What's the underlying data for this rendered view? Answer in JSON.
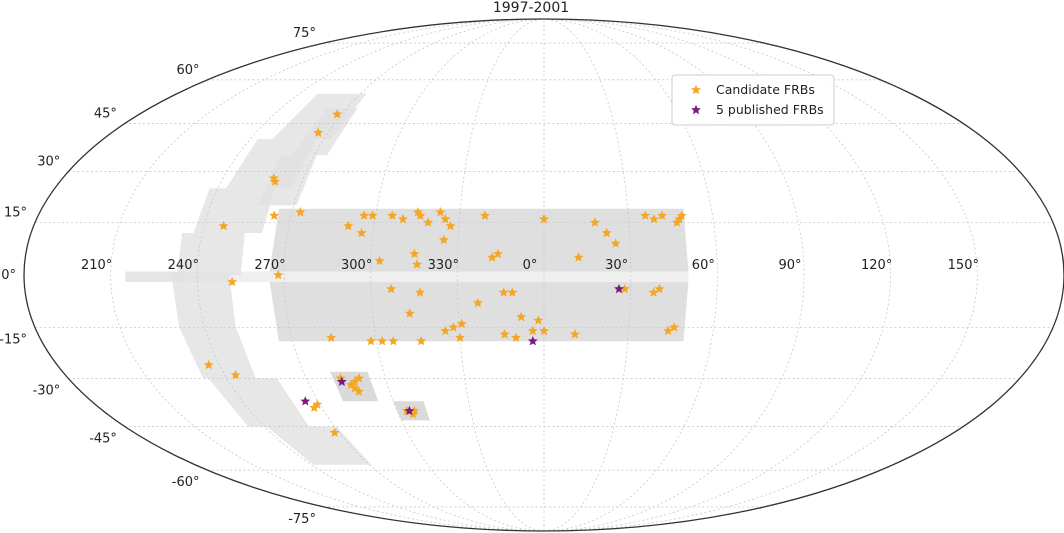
{
  "chart_data": {
    "type": "scatter",
    "projection": "mollweide",
    "title": "1997-2001",
    "grid": true,
    "legend_position": "top-right",
    "longitude_ticks": [
      "210°",
      "240°",
      "270°",
      "300°",
      "330°",
      "0°",
      "30°",
      "60°",
      "90°",
      "120°",
      "150°"
    ],
    "latitude_ticks": [
      "-75°",
      "-60°",
      "-45°",
      "-30°",
      "-15°",
      "0°",
      "15°",
      "30°",
      "45°",
      "60°",
      "75°"
    ],
    "colors": {
      "candidate": "#f5a623",
      "published": "#7b1a80",
      "coverage": "#d9d9d9",
      "border": "#333333"
    },
    "series": [
      {
        "name": "Candidate FRBs",
        "color": "#f5a623",
        "points": [
          {
            "lon": 268,
            "lat": 48
          },
          {
            "lon": 266,
            "lat": 42
          },
          {
            "lon": 259,
            "lat": 28
          },
          {
            "lon": 260,
            "lat": 27
          },
          {
            "lon": 247,
            "lat": 14
          },
          {
            "lon": 264,
            "lat": 17
          },
          {
            "lon": 273,
            "lat": 18
          },
          {
            "lon": 291,
            "lat": 14
          },
          {
            "lon": 296,
            "lat": 17
          },
          {
            "lon": 299,
            "lat": 17
          },
          {
            "lon": 306,
            "lat": 17
          },
          {
            "lon": 310,
            "lat": 16
          },
          {
            "lon": 315,
            "lat": 18
          },
          {
            "lon": 316,
            "lat": 17
          },
          {
            "lon": 319,
            "lat": 15
          },
          {
            "lon": 323,
            "lat": 18
          },
          {
            "lon": 325,
            "lat": 16
          },
          {
            "lon": 327,
            "lat": 14
          },
          {
            "lon": 339,
            "lat": 17
          },
          {
            "lon": 0,
            "lat": 16
          },
          {
            "lon": 18,
            "lat": 15
          },
          {
            "lon": 22,
            "lat": 12
          },
          {
            "lon": 25,
            "lat": 9
          },
          {
            "lon": 36,
            "lat": 17
          },
          {
            "lon": 39,
            "lat": 16
          },
          {
            "lon": 42,
            "lat": 17
          },
          {
            "lon": 47,
            "lat": 15
          },
          {
            "lon": 48,
            "lat": 16
          },
          {
            "lon": 49,
            "lat": 17
          },
          {
            "lon": 296,
            "lat": 12
          },
          {
            "lon": 303,
            "lat": 4
          },
          {
            "lon": 315,
            "lat": 6
          },
          {
            "lon": 316,
            "lat": 3
          },
          {
            "lon": 325,
            "lat": 10
          },
          {
            "lon": 342,
            "lat": 5
          },
          {
            "lon": 344,
            "lat": 6
          },
          {
            "lon": 12,
            "lat": 5
          },
          {
            "lon": 268,
            "lat": 0
          },
          {
            "lon": 252,
            "lat": -2
          },
          {
            "lon": 307,
            "lat": -4
          },
          {
            "lon": 317,
            "lat": -5
          },
          {
            "lon": 337,
            "lat": -8
          },
          {
            "lon": 346,
            "lat": -5
          },
          {
            "lon": 349,
            "lat": -5
          },
          {
            "lon": 28,
            "lat": -4
          },
          {
            "lon": 38,
            "lat": -5
          },
          {
            "lon": 40,
            "lat": -4
          },
          {
            "lon": 313,
            "lat": -11
          },
          {
            "lon": 325,
            "lat": -16
          },
          {
            "lon": 328,
            "lat": -15
          },
          {
            "lon": 331,
            "lat": -14
          },
          {
            "lon": 352,
            "lat": -12
          },
          {
            "lon": 358,
            "lat": -13
          },
          {
            "lon": 356,
            "lat": -16
          },
          {
            "lon": 0,
            "lat": -16
          },
          {
            "lon": 346,
            "lat": -17
          },
          {
            "lon": 350,
            "lat": -18
          },
          {
            "lon": 11,
            "lat": -17
          },
          {
            "lon": 44,
            "lat": -16
          },
          {
            "lon": 46,
            "lat": -15
          },
          {
            "lon": 284,
            "lat": -18
          },
          {
            "lon": 298,
            "lat": -19
          },
          {
            "lon": 302,
            "lat": -19
          },
          {
            "lon": 306,
            "lat": -19
          },
          {
            "lon": 316,
            "lat": -19
          },
          {
            "lon": 330,
            "lat": -18
          },
          {
            "lon": 236,
            "lat": -26
          },
          {
            "lon": 244,
            "lat": -29
          },
          {
            "lon": 283,
            "lat": -30
          },
          {
            "lon": 286,
            "lat": -32
          },
          {
            "lon": 287,
            "lat": -33
          },
          {
            "lon": 288,
            "lat": -31
          },
          {
            "lon": 290,
            "lat": -30
          },
          {
            "lon": 288,
            "lat": -34
          },
          {
            "lon": 267,
            "lat": -39
          },
          {
            "lon": 269,
            "lat": -38
          },
          {
            "lon": 304,
            "lat": -40
          },
          {
            "lon": 306,
            "lat": -41
          },
          {
            "lon": 307,
            "lat": -40
          },
          {
            "lon": 268,
            "lat": -47
          }
        ]
      },
      {
        "name": "5 published FRBs",
        "color": "#7b1a80",
        "points": [
          {
            "lon": 26,
            "lat": -4
          },
          {
            "lon": 356,
            "lat": -19
          },
          {
            "lon": 283,
            "lat": -31
          },
          {
            "lon": 265,
            "lat": -37
          },
          {
            "lon": 305,
            "lat": -40
          }
        ]
      }
    ]
  }
}
